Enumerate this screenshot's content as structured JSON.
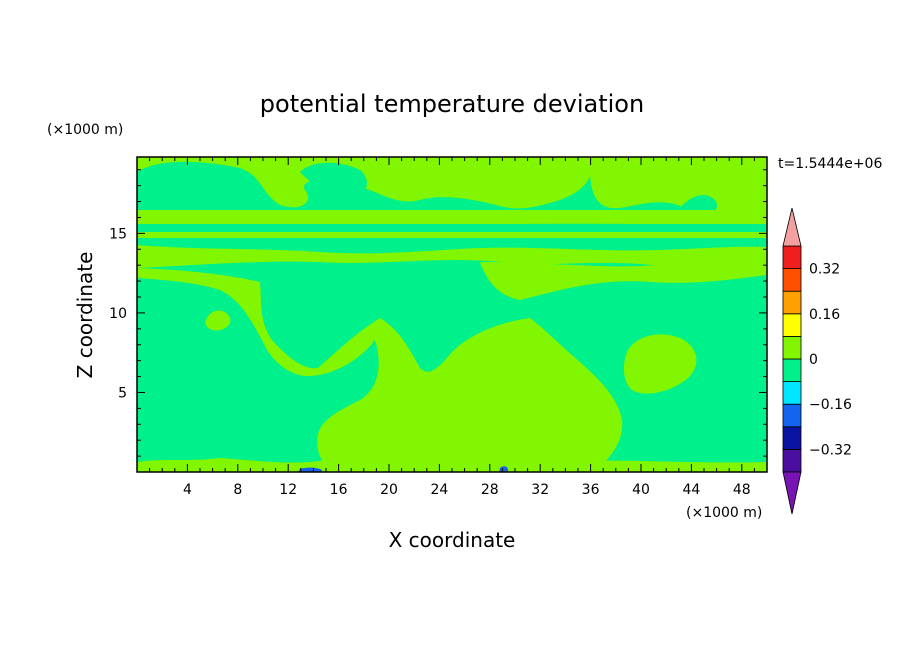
{
  "chart_data": {
    "type": "heatmap",
    "title": "potential temperature deviation",
    "xlabel": "X coordinate",
    "ylabel": "Z coordinate",
    "x_unit": "(×1000 m)",
    "y_unit": "(×1000 m)",
    "time_label": "t=1.5444e+06",
    "xlim": [
      0,
      50
    ],
    "ylim": [
      0,
      19.8
    ],
    "x_ticks": [
      4,
      8,
      12,
      16,
      20,
      24,
      28,
      32,
      36,
      40,
      44,
      48
    ],
    "y_ticks": [
      5,
      10,
      15
    ],
    "colorbar": {
      "levels": [
        -0.4,
        -0.32,
        -0.24,
        -0.16,
        -0.08,
        0,
        0.08,
        0.16,
        0.24,
        0.32,
        0.4
      ],
      "colors": [
        "#4b0fa0",
        "#0a14a0",
        "#1464f0",
        "#00e6ff",
        "#00f08c",
        "#82f500",
        "#ffff00",
        "#ffa000",
        "#ff5000",
        "#f01e1e"
      ],
      "under_color": "#7814b4",
      "over_color": "#f5a0a0",
      "tick_labels": [
        "−0.32",
        "−0.16",
        "0",
        "0.16",
        "0.32"
      ],
      "tick_values": [
        -0.32,
        -0.16,
        0,
        0.16,
        0.32
      ]
    },
    "field_colors": {
      "negative_small": "#00f08c",
      "positive_small": "#82f500",
      "negative_mid": "#1464f0"
    }
  }
}
